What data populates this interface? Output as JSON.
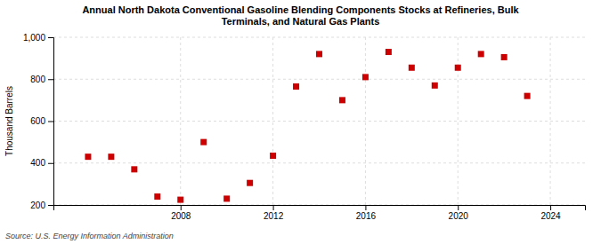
{
  "chart_data": {
    "type": "scatter",
    "title": "Annual North Dakota Conventional Gasoline Blending Components Stocks at Refineries, Bulk\nTerminals, and Natural Gas Plants",
    "y_label": "Thousand Barrels",
    "annotations": [
      "Source: U.S. Energy Information Administration"
    ],
    "x": [
      2004,
      2005,
      2006,
      2007,
      2008,
      2009,
      2010,
      2011,
      2012,
      2013,
      2014,
      2015,
      2016,
      2017,
      2018,
      2019,
      2020,
      2021,
      2022,
      2023
    ],
    "values": [
      430,
      430,
      370,
      240,
      225,
      500,
      230,
      305,
      435,
      765,
      920,
      700,
      810,
      930,
      855,
      770,
      855,
      920,
      905,
      720
    ],
    "color": "#cc0000",
    "marker": "square",
    "xlim": [
      2002.5,
      2025.5
    ],
    "xticks": [
      2008,
      2012,
      2016,
      2020,
      2024
    ],
    "ylim": [
      200,
      1000
    ],
    "yticks": [
      200,
      400,
      600,
      800,
      {
        "value": 1000,
        "label": "1,000"
      }
    ],
    "grid": true
  }
}
